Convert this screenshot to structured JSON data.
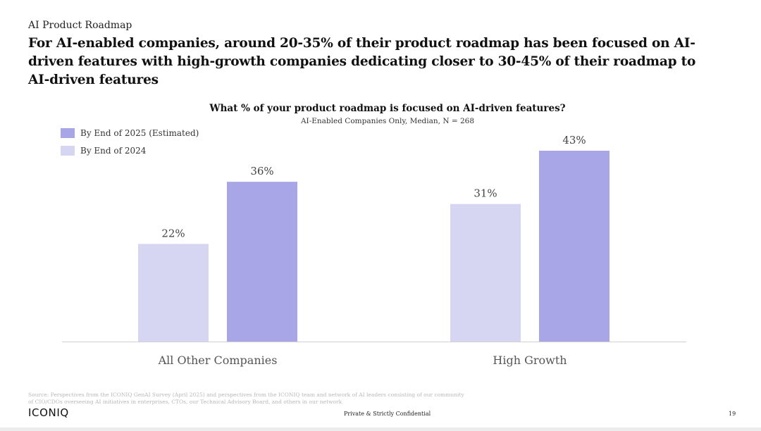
{
  "section_label": "AI Product Roadmap",
  "headline": "For AI-enabled companies, around 20-35% of their product roadmap has been focused on AI-driven features with high-growth companies dedicating closer to 30-45% of their roadmap to AI-driven features",
  "chart_data": {
    "type": "bar",
    "title": "What % of your product roadmap is focused on AI-driven features?",
    "subtitle": "AI-Enabled Companies Only, Median, N = 268",
    "categories": [
      "All Other Companies",
      "High Growth"
    ],
    "series": [
      {
        "name": "By End of 2024",
        "values": [
          22,
          31
        ],
        "color": "#d6d5f2"
      },
      {
        "name": "By End of 2025 (Estimated)",
        "values": [
          36,
          43
        ],
        "color": "#a8a6e6"
      }
    ],
    "value_suffix": "%",
    "ylim": [
      0,
      43
    ],
    "legend_position": "top-left",
    "grid": false
  },
  "legend": [
    {
      "label": "By End of 2025 (Estimated)",
      "color": "#a8a6e6"
    },
    {
      "label": "By End of 2024",
      "color": "#d6d5f2"
    }
  ],
  "footer": {
    "source": "Source: Perspectives from the ICONIQ GenAI Survey (April 2025) and perspectives from the ICONIQ team and network of AI leaders consisting of our community of CIO/CDOs overseeing AI initiatives in enterprises, CTOs, our Technical Advisory Board, and others in our network",
    "logo": "ICONIQ",
    "confidential": "Private & Strictly Confidential",
    "page_number": "19"
  }
}
